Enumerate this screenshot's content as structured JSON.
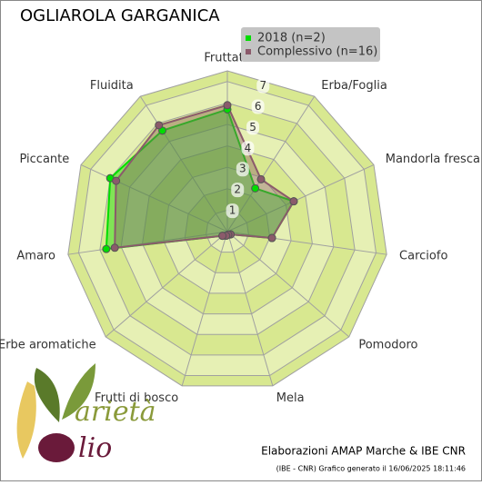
{
  "chart_data": {
    "type": "radar",
    "title": "OGLIAROLA GARGANICA",
    "categories": [
      "Fruttato",
      "Erba/Foglia",
      "Mandorla fresca",
      "Carciofo",
      "Pomodoro",
      "Mela",
      "Frutti di bosco",
      "Erbe aromatiche",
      "Amaro",
      "Piccante",
      "Fluidita"
    ],
    "series": [
      {
        "name": "2018 (n=2)",
        "color": "#00dd00",
        "values": [
          5.7,
          2.4,
          3.4,
          2.1,
          0.2,
          0.15,
          0.2,
          0.3,
          5.7,
          6.0,
          5.6
        ]
      },
      {
        "name": "Complessivo (n=16)",
        "color": "#8b5a6b",
        "values": [
          5.9,
          2.9,
          3.4,
          2.1,
          0.2,
          0.15,
          0.2,
          0.3,
          5.3,
          5.7,
          5.9
        ]
      }
    ],
    "ylim": [
      0,
      7.5
    ],
    "yticks": [
      1,
      2,
      3,
      4,
      5,
      6,
      7
    ],
    "grid": true,
    "credit": "Elaborazioni AMAP Marche & IBE CNR",
    "footnote": "(IBE - CNR) Grafico generato il 16/06/2025 18:11:46",
    "logo": {
      "word1": "arietà",
      "word2": "lio"
    }
  }
}
